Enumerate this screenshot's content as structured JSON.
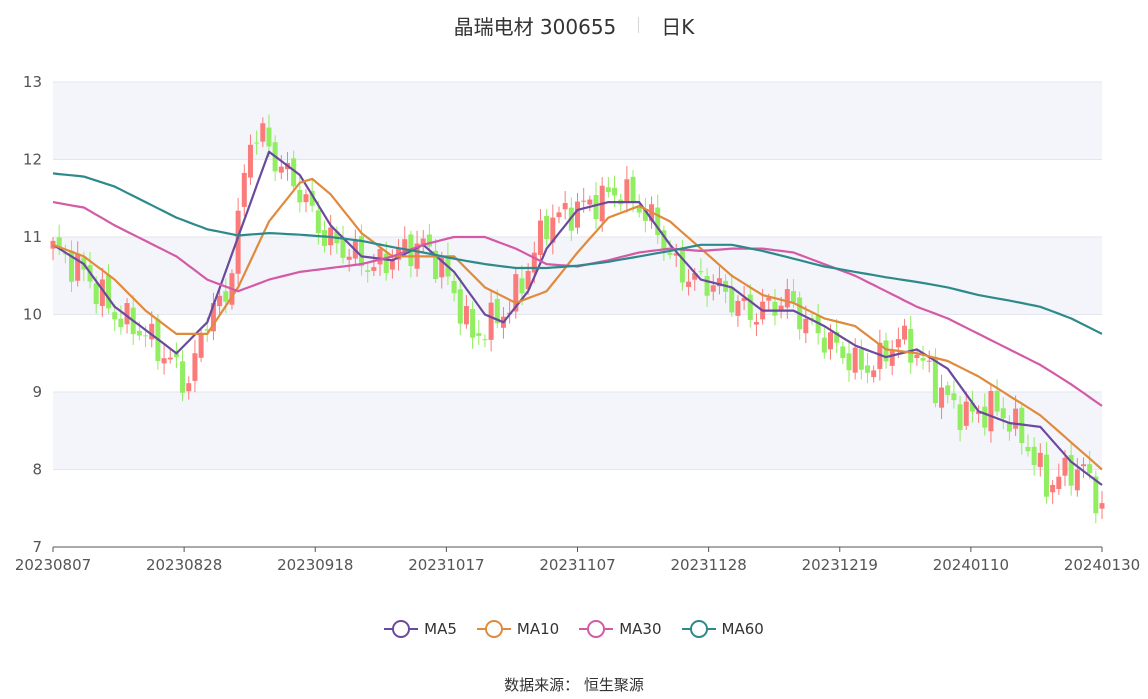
{
  "header": {
    "stock": "晶瑞电材 300655",
    "period": "日K"
  },
  "source_text": "数据来源：  恒生聚源",
  "chart_data": {
    "type": "candlestick",
    "yaxis": {
      "min": 7,
      "max": 13,
      "ticks": [
        7,
        8,
        9,
        10,
        11,
        12,
        13
      ]
    },
    "x_tick_labels": [
      "20230807",
      "20230828",
      "20230918",
      "20231017",
      "20231107",
      "20231128",
      "20231219",
      "20240110",
      "20240130"
    ],
    "grid": "horizontal bands",
    "colors": {
      "up": "#fb7b7b",
      "down": "#90ee60"
    },
    "series": [
      {
        "name": "MA5",
        "color": "#6a4a9c",
        "anchors": [
          [
            0,
            10.9
          ],
          [
            5,
            10.65
          ],
          [
            10,
            10.1
          ],
          [
            15,
            9.8
          ],
          [
            20,
            9.5
          ],
          [
            25,
            9.9
          ],
          [
            30,
            11.0
          ],
          [
            35,
            12.1
          ],
          [
            40,
            11.8
          ],
          [
            45,
            11.15
          ],
          [
            50,
            10.75
          ],
          [
            55,
            10.7
          ],
          [
            60,
            10.9
          ],
          [
            65,
            10.55
          ],
          [
            70,
            10.0
          ],
          [
            73,
            9.9
          ],
          [
            77,
            10.3
          ],
          [
            80,
            10.85
          ],
          [
            85,
            11.35
          ],
          [
            90,
            11.45
          ],
          [
            95,
            11.45
          ],
          [
            100,
            10.9
          ],
          [
            105,
            10.45
          ],
          [
            110,
            10.35
          ],
          [
            115,
            10.05
          ],
          [
            120,
            10.05
          ],
          [
            125,
            9.85
          ],
          [
            130,
            9.6
          ],
          [
            135,
            9.45
          ],
          [
            140,
            9.55
          ],
          [
            145,
            9.3
          ],
          [
            150,
            8.75
          ],
          [
            155,
            8.6
          ],
          [
            160,
            8.55
          ],
          [
            165,
            8.1
          ],
          [
            170,
            7.8
          ]
        ]
      },
      {
        "name": "MA10",
        "color": "#e08a3c",
        "anchors": [
          [
            0,
            10.9
          ],
          [
            5,
            10.75
          ],
          [
            10,
            10.45
          ],
          [
            15,
            10.05
          ],
          [
            20,
            9.75
          ],
          [
            25,
            9.75
          ],
          [
            30,
            10.35
          ],
          [
            35,
            11.2
          ],
          [
            40,
            11.7
          ],
          [
            42,
            11.75
          ],
          [
            45,
            11.55
          ],
          [
            50,
            11.05
          ],
          [
            55,
            10.75
          ],
          [
            60,
            10.75
          ],
          [
            65,
            10.75
          ],
          [
            70,
            10.35
          ],
          [
            75,
            10.15
          ],
          [
            80,
            10.3
          ],
          [
            85,
            10.8
          ],
          [
            90,
            11.25
          ],
          [
            95,
            11.4
          ],
          [
            100,
            11.2
          ],
          [
            105,
            10.85
          ],
          [
            110,
            10.5
          ],
          [
            115,
            10.25
          ],
          [
            120,
            10.15
          ],
          [
            125,
            9.95
          ],
          [
            130,
            9.85
          ],
          [
            135,
            9.55
          ],
          [
            140,
            9.5
          ],
          [
            145,
            9.4
          ],
          [
            150,
            9.2
          ],
          [
            155,
            8.95
          ],
          [
            160,
            8.7
          ],
          [
            165,
            8.35
          ],
          [
            170,
            8.0
          ]
        ]
      },
      {
        "name": "MA30",
        "color": "#d45aa6",
        "anchors": [
          [
            0,
            11.45
          ],
          [
            5,
            11.38
          ],
          [
            10,
            11.15
          ],
          [
            15,
            10.95
          ],
          [
            20,
            10.75
          ],
          [
            25,
            10.45
          ],
          [
            30,
            10.3
          ],
          [
            35,
            10.45
          ],
          [
            40,
            10.55
          ],
          [
            45,
            10.6
          ],
          [
            50,
            10.65
          ],
          [
            55,
            10.75
          ],
          [
            60,
            10.9
          ],
          [
            65,
            11.0
          ],
          [
            70,
            11.0
          ],
          [
            75,
            10.85
          ],
          [
            80,
            10.65
          ],
          [
            85,
            10.62
          ],
          [
            90,
            10.7
          ],
          [
            95,
            10.8
          ],
          [
            100,
            10.85
          ],
          [
            105,
            10.82
          ],
          [
            110,
            10.85
          ],
          [
            115,
            10.85
          ],
          [
            120,
            10.8
          ],
          [
            125,
            10.65
          ],
          [
            130,
            10.5
          ],
          [
            135,
            10.3
          ],
          [
            140,
            10.1
          ],
          [
            145,
            9.95
          ],
          [
            150,
            9.75
          ],
          [
            155,
            9.55
          ],
          [
            160,
            9.35
          ],
          [
            165,
            9.1
          ],
          [
            170,
            8.82
          ]
        ]
      },
      {
        "name": "MA60",
        "color": "#2e8a8a",
        "anchors": [
          [
            0,
            11.82
          ],
          [
            5,
            11.78
          ],
          [
            10,
            11.65
          ],
          [
            15,
            11.45
          ],
          [
            20,
            11.25
          ],
          [
            25,
            11.1
          ],
          [
            30,
            11.02
          ],
          [
            35,
            11.05
          ],
          [
            40,
            11.03
          ],
          [
            45,
            11.0
          ],
          [
            50,
            10.95
          ],
          [
            55,
            10.87
          ],
          [
            60,
            10.8
          ],
          [
            65,
            10.72
          ],
          [
            70,
            10.65
          ],
          [
            75,
            10.6
          ],
          [
            80,
            10.6
          ],
          [
            85,
            10.63
          ],
          [
            90,
            10.68
          ],
          [
            95,
            10.75
          ],
          [
            100,
            10.82
          ],
          [
            105,
            10.9
          ],
          [
            110,
            10.9
          ],
          [
            115,
            10.82
          ],
          [
            120,
            10.72
          ],
          [
            125,
            10.62
          ],
          [
            130,
            10.55
          ],
          [
            135,
            10.48
          ],
          [
            140,
            10.42
          ],
          [
            145,
            10.35
          ],
          [
            150,
            10.25
          ],
          [
            155,
            10.18
          ],
          [
            160,
            10.1
          ],
          [
            165,
            9.95
          ],
          [
            170,
            9.75
          ]
        ]
      }
    ],
    "candle_anchors": [
      [
        0,
        10.85
      ],
      [
        5,
        10.55
      ],
      [
        10,
        10.0
      ],
      [
        15,
        9.75
      ],
      [
        20,
        9.3
      ],
      [
        22,
        9.1
      ],
      [
        25,
        10.0
      ],
      [
        28,
        10.2
      ],
      [
        30,
        11.2
      ],
      [
        32,
        12.3
      ],
      [
        34,
        12.3
      ],
      [
        36,
        12.0
      ],
      [
        40,
        11.6
      ],
      [
        44,
        11.0
      ],
      [
        48,
        10.8
      ],
      [
        52,
        10.6
      ],
      [
        56,
        10.8
      ],
      [
        60,
        10.9
      ],
      [
        63,
        10.6
      ],
      [
        66,
        10.1
      ],
      [
        68,
        9.7
      ],
      [
        71,
        9.9
      ],
      [
        74,
        10.1
      ],
      [
        77,
        10.6
      ],
      [
        80,
        11.2
      ],
      [
        83,
        11.3
      ],
      [
        86,
        11.4
      ],
      [
        89,
        11.5
      ],
      [
        92,
        11.6
      ],
      [
        95,
        11.4
      ],
      [
        98,
        11.1
      ],
      [
        101,
        10.6
      ],
      [
        104,
        10.45
      ],
      [
        107,
        10.4
      ],
      [
        110,
        10.2
      ],
      [
        113,
        10.0
      ],
      [
        116,
        10.1
      ],
      [
        119,
        10.2
      ],
      [
        122,
        9.9
      ],
      [
        125,
        9.7
      ],
      [
        128,
        9.5
      ],
      [
        131,
        9.3
      ],
      [
        134,
        9.4
      ],
      [
        137,
        9.7
      ],
      [
        140,
        9.5
      ],
      [
        143,
        9.1
      ],
      [
        146,
        8.8
      ],
      [
        149,
        8.7
      ],
      [
        152,
        8.8
      ],
      [
        155,
        8.65
      ],
      [
        158,
        8.3
      ],
      [
        161,
        7.8
      ],
      [
        163,
        7.9
      ],
      [
        165,
        8.0
      ],
      [
        167,
        8.0
      ],
      [
        170,
        7.5
      ]
    ]
  },
  "legend": [
    {
      "name": "MA5",
      "color": "#6a4a9c"
    },
    {
      "name": "MA10",
      "color": "#e08a3c"
    },
    {
      "name": "MA30",
      "color": "#d45aa6"
    },
    {
      "name": "MA60",
      "color": "#2e8a8a"
    }
  ]
}
